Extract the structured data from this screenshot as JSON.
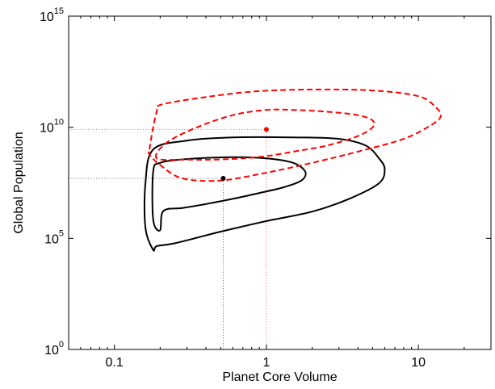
{
  "chart_data": {
    "type": "line",
    "title": "",
    "xlabel": "Planet Core Volume",
    "ylabel": "Global Population",
    "x_scale": "log",
    "y_scale": "log",
    "xlim": [
      0.05,
      30
    ],
    "ylim": [
      1,
      1000000000000000.0
    ],
    "grid": false,
    "legend": "none",
    "x_ticks": [
      {
        "value": 0.1,
        "label": "0.1"
      },
      {
        "value": 1,
        "label": "1"
      },
      {
        "value": 10,
        "label": "10"
      }
    ],
    "y_ticks": [
      {
        "value": 1,
        "base": "10",
        "exp": "0"
      },
      {
        "value": 100000,
        "base": "10",
        "exp": "5"
      },
      {
        "value": 10000000000,
        "base": "10",
        "exp": "10"
      },
      {
        "value": 1000000000000000.0,
        "base": "10",
        "exp": "15"
      }
    ],
    "colors": {
      "black": "#000000",
      "red": "#ff0000",
      "dotted": "#9a9a9a"
    },
    "series": [
      {
        "id": "black-outer",
        "color": "#000000",
        "style": "solid",
        "points": [
          [
            0.18,
            30000.0
          ],
          [
            0.16,
            300000.0
          ],
          [
            0.16,
            30000000.0
          ],
          [
            0.18,
            1000000000.0
          ],
          [
            0.3,
            2500000000.0
          ],
          [
            0.6,
            3500000000.0
          ],
          [
            1.5,
            3500000000.0
          ],
          [
            3,
            3000000000.0
          ],
          [
            4.5,
            1500000000.0
          ],
          [
            5.5,
            400000000.0
          ],
          [
            6,
            130000000.0
          ],
          [
            5.5,
            30000000.0
          ],
          [
            3.5,
            6000000.0
          ],
          [
            2,
            1600000.0
          ],
          [
            1,
            600000.0
          ],
          [
            0.5,
            200000.0
          ],
          [
            0.25,
            60000.0
          ],
          [
            0.19,
            45000.0
          ],
          [
            0.18,
            30000.0
          ]
        ]
      },
      {
        "id": "black-inner",
        "color": "#000000",
        "style": "solid",
        "points": [
          [
            0.2,
            230000.0
          ],
          [
            0.18,
            700000.0
          ],
          [
            0.18,
            100000000.0
          ],
          [
            0.2,
            250000000.0
          ],
          [
            0.3,
            370000000.0
          ],
          [
            0.6,
            450000000.0
          ],
          [
            1,
            400000000.0
          ],
          [
            1.5,
            250000000.0
          ],
          [
            1.8,
            100000000.0
          ],
          [
            1.7,
            40000000.0
          ],
          [
            1.3,
            20000000.0
          ],
          [
            0.9,
            11000000.0
          ],
          [
            0.6,
            6000000.0
          ],
          [
            0.4,
            3500000.0
          ],
          [
            0.28,
            2300000.0
          ],
          [
            0.21,
            1700000.0
          ],
          [
            0.2,
            230000.0
          ]
        ]
      },
      {
        "id": "red-outer",
        "color": "#ff0000",
        "style": "dashed",
        "points": [
          [
            0.17,
            1000000000.0
          ],
          [
            0.18,
            10000000000.0
          ],
          [
            0.19,
            50000000000.0
          ],
          [
            0.2,
            100000000000.0
          ],
          [
            0.35,
            200000000000.0
          ],
          [
            0.8,
            400000000000.0
          ],
          [
            2,
            500000000000.0
          ],
          [
            5,
            450000000000.0
          ],
          [
            10,
            250000000000.0
          ],
          [
            13,
            80000000000.0
          ],
          [
            14,
            30000000000.0
          ],
          [
            12,
            12000000000.0
          ],
          [
            8,
            3000000000.0
          ],
          [
            4,
            800000000.0
          ],
          [
            2,
            250000000.0
          ],
          [
            1,
            90000000.0
          ],
          [
            0.5,
            40000000.0
          ],
          [
            0.28,
            50000000.0
          ],
          [
            0.2,
            200000000.0
          ],
          [
            0.17,
            600000000.0
          ],
          [
            0.17,
            1000000000.0
          ]
        ]
      },
      {
        "id": "red-inner",
        "color": "#ff0000",
        "style": "dashed",
        "points": [
          [
            0.19,
            400000000.0
          ],
          [
            0.22,
            2000000000.0
          ],
          [
            0.35,
            10000000000.0
          ],
          [
            0.6,
            35000000000.0
          ],
          [
            1,
            60000000000.0
          ],
          [
            1.5,
            60000000000.0
          ],
          [
            2.5,
            50000000000.0
          ],
          [
            4,
            35000000000.0
          ],
          [
            5,
            20000000000.0
          ],
          [
            5,
            10000000000.0
          ],
          [
            4,
            4000000000.0
          ],
          [
            2.5,
            1500000000.0
          ],
          [
            1.5,
            800000000.0
          ],
          [
            1,
            500000000.0
          ],
          [
            0.7,
            400000000.0
          ],
          [
            0.45,
            350000000.0
          ],
          [
            0.3,
            350000000.0
          ],
          [
            0.19,
            400000000.0
          ]
        ]
      }
    ],
    "markers": [
      {
        "id": "black-point",
        "x": 0.52,
        "y": 50000000.0,
        "color": "#000000"
      },
      {
        "id": "red-point",
        "x": 1.0,
        "y": 8000000000.0,
        "color": "#ff0000"
      }
    ]
  }
}
